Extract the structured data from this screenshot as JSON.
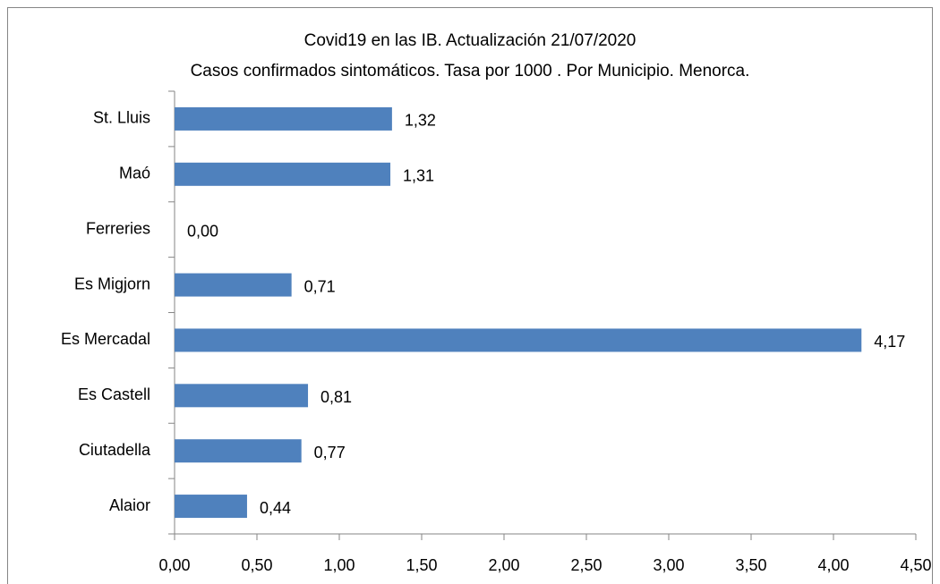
{
  "chart_data": {
    "type": "bar",
    "orientation": "horizontal",
    "title": "Covid19 en las IB. Actualización 21/07/2020",
    "subtitle": "Casos confirmados sintomáticos.  Tasa por 1000 . Por Municipio.  Menorca.",
    "categories": [
      "St. Lluis",
      "Maó",
      "Ferreries",
      "Es Migjorn",
      "Es Mercadal",
      "Es Castell",
      "Ciutadella",
      "Alaior"
    ],
    "values": [
      1.32,
      1.31,
      0.0,
      0.71,
      4.17,
      0.81,
      0.77,
      0.44
    ],
    "value_labels": [
      "1,32",
      "1,31",
      "0,00",
      "0,71",
      "4,17",
      "0,81",
      "0,77",
      "0,44"
    ],
    "color": "#4f81bd",
    "xlim": [
      0,
      4.5
    ],
    "xticks": [
      {
        "value": 0,
        "label": "0,00"
      },
      {
        "value": 0.5,
        "label": "0,50"
      },
      {
        "value": 1,
        "label": "1,00"
      },
      {
        "value": 1.5,
        "label": "1,50"
      },
      {
        "value": 2,
        "label": "2,00"
      },
      {
        "value": 2.5,
        "label": "2,50"
      },
      {
        "value": 3,
        "label": "3,00"
      },
      {
        "value": 3.5,
        "label": "3,50"
      },
      {
        "value": 4,
        "label": "4,00"
      },
      {
        "value": 4.5,
        "label": "4,50"
      }
    ],
    "grid": false
  }
}
